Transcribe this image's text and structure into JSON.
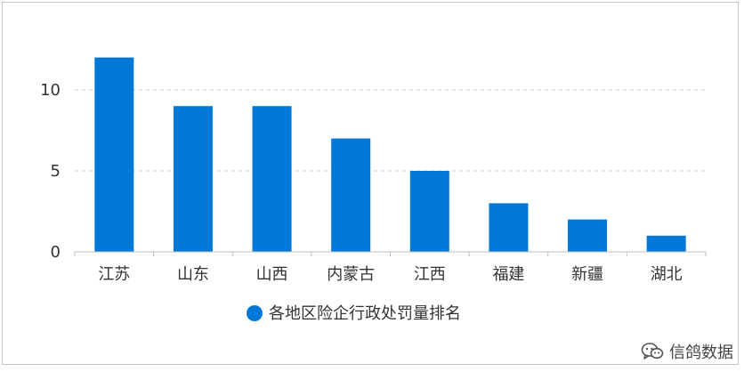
{
  "chart_data": {
    "type": "bar",
    "categories": [
      "江苏",
      "山东",
      "山西",
      "内蒙古",
      "江西",
      "福建",
      "新疆",
      "湖北"
    ],
    "series": [
      {
        "name": "各地区险企行政处罚量排名",
        "values": [
          12,
          9,
          9,
          7,
          5,
          3,
          2,
          1
        ]
      }
    ],
    "title": "",
    "xlabel": "",
    "ylabel": "",
    "ylim": [
      0,
      12
    ],
    "yticks": [
      0,
      5,
      10
    ],
    "grid": true,
    "legend": "bottom-center",
    "colors": {
      "bar": "#0078d7",
      "grid": "#cfcfcf",
      "axis": "#bfbfbf"
    }
  },
  "watermark": {
    "icon": "wechat-icon",
    "text": "信鸽数据"
  }
}
